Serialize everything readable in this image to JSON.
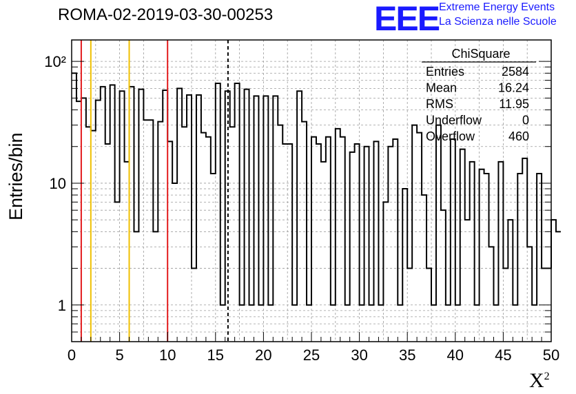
{
  "run_label": "ROMA-02-2019-03-30-00253",
  "logo": {
    "mark": "EEE",
    "line1": "Extreme Energy Events",
    "line2": "La Scienza nelle Scuole",
    "color": "#1a1aff"
  },
  "chart_data": {
    "type": "histogram",
    "title": "ROMA-02-2019-03-30-00253",
    "xlabel": "X",
    "xlabel_sup": "2",
    "ylabel": "Entries/bin",
    "xlim": [
      0,
      50
    ],
    "ylim": [
      0.5,
      150
    ],
    "y_scale": "log",
    "grid": true,
    "x_ticks": [
      "0",
      "5",
      "10",
      "15",
      "20",
      "25",
      "30",
      "35",
      "40",
      "45",
      "50"
    ],
    "y_ticks": [
      {
        "value": 1,
        "label": "1"
      },
      {
        "value": 10,
        "label": "10"
      },
      {
        "value": 100,
        "label": "10²"
      }
    ],
    "bin_width": 0.5,
    "bin_values": [
      80,
      47,
      50,
      29,
      27,
      48,
      62,
      21,
      64,
      7,
      57,
      15,
      62,
      4,
      59,
      33,
      33,
      4,
      32,
      58,
      22,
      10,
      60,
      29,
      53,
      2,
      53,
      26,
      24,
      12,
      66,
      1,
      57,
      29,
      66,
      1,
      59,
      1,
      52,
      1,
      52,
      1,
      52,
      30,
      21,
      21,
      1,
      57,
      32,
      1,
      24,
      21,
      15,
      24,
      1,
      28,
      24,
      1,
      18,
      21,
      1,
      20,
      1,
      22,
      1,
      7,
      20,
      23,
      1,
      9,
      2,
      30,
      26,
      8,
      2,
      1,
      30,
      6,
      1,
      23,
      1,
      19,
      5,
      15,
      1,
      13,
      12,
      3,
      1,
      15,
      2,
      5,
      1,
      12,
      16,
      3,
      1,
      12,
      2,
      2,
      5,
      4
    ],
    "vertical_lines": [
      {
        "x": 1,
        "color": "#e31a1c",
        "style": "solid"
      },
      {
        "x": 2,
        "color": "#f0c000",
        "style": "solid"
      },
      {
        "x": 6,
        "color": "#f0c000",
        "style": "solid"
      },
      {
        "x": 10,
        "color": "#e31a1c",
        "style": "solid"
      },
      {
        "x": 16.3,
        "color": "#000000",
        "style": "dashed"
      }
    ],
    "stats_box": {
      "title": "ChiSquare",
      "rows": [
        {
          "label": "Entries",
          "value": "2584"
        },
        {
          "label": "Mean",
          "value": "16.24"
        },
        {
          "label": "RMS",
          "value": "11.95"
        },
        {
          "label": "Underflow",
          "value": "0"
        },
        {
          "label": "Overflow",
          "value": "460"
        }
      ]
    }
  }
}
